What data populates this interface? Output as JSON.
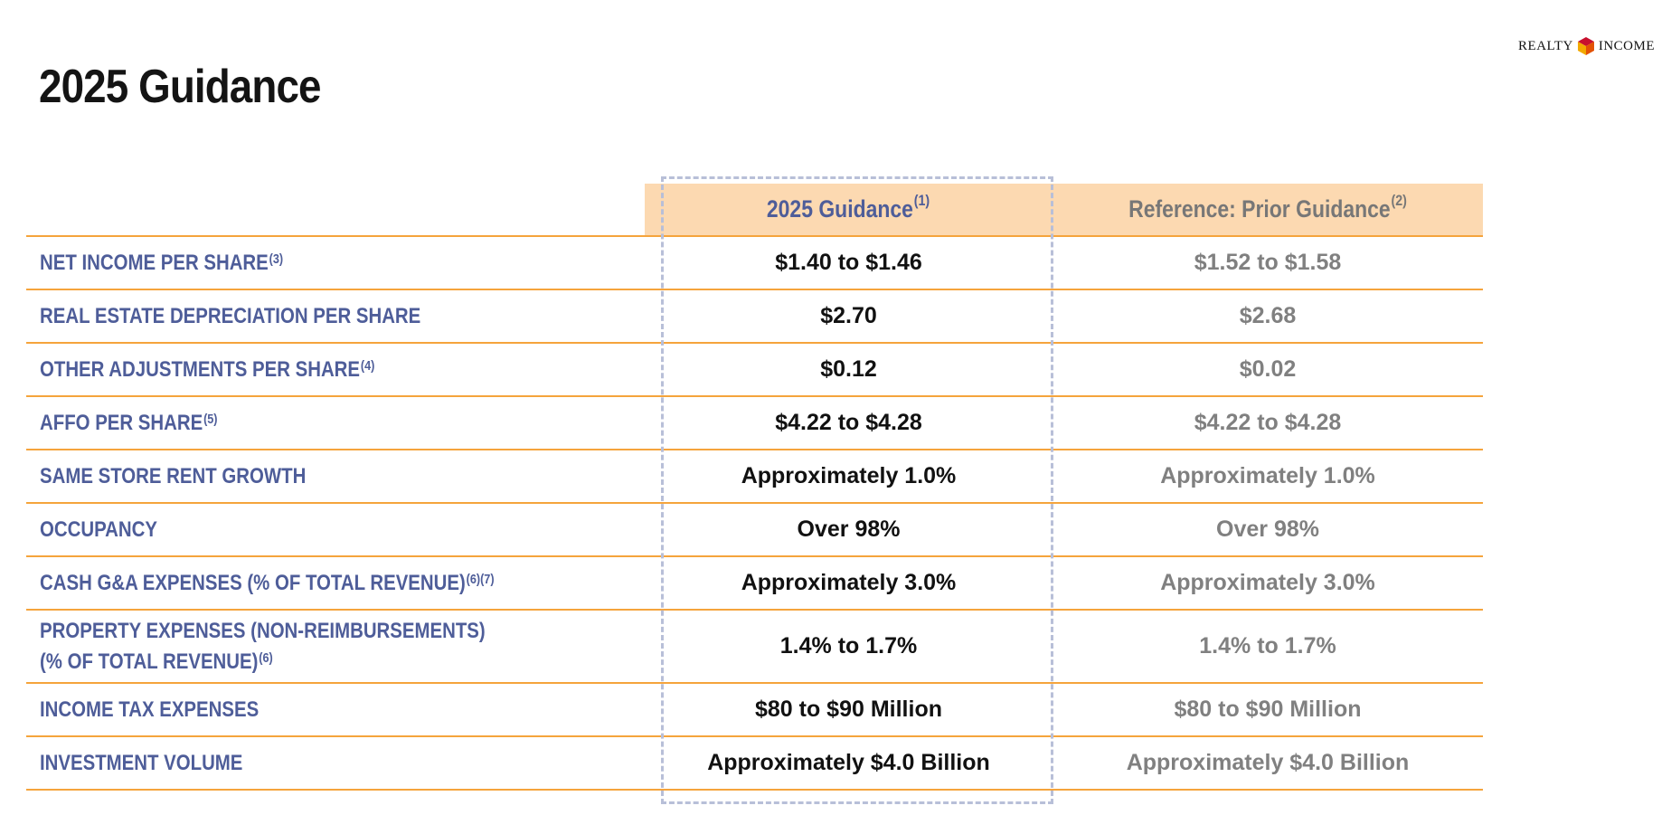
{
  "logo": {
    "left_text": "REALTY",
    "right_text": "INCOME",
    "mark": "realty-income-cube-icon"
  },
  "title": "2025 Guidance",
  "table": {
    "headers": {
      "current": "2025 Guidance",
      "current_note": "(1)",
      "prior": "Reference:  Prior Guidance",
      "prior_note": "(2)"
    },
    "rows": [
      {
        "label": "NET INCOME PER SHARE",
        "note": "(3)",
        "current": "$1.40 to $1.46",
        "prior": "$1.52 to $1.58"
      },
      {
        "label": "REAL ESTATE DEPRECIATION PER SHARE",
        "note": "",
        "current": "$2.70",
        "prior": "$2.68"
      },
      {
        "label": "OTHER ADJUSTMENTS PER SHARE",
        "note": "(4)",
        "current": "$0.12",
        "prior": "$0.02"
      },
      {
        "label": "AFFO PER SHARE",
        "note": "(5)",
        "current": "$4.22 to $4.28",
        "prior": "$4.22 to $4.28"
      },
      {
        "label": "SAME STORE RENT GROWTH",
        "note": "",
        "current": "Approximately 1.0%",
        "prior": "Approximately 1.0%"
      },
      {
        "label": "OCCUPANCY",
        "note": "",
        "current": "Over 98%",
        "prior": "Over 98%"
      },
      {
        "label": "CASH G&A EXPENSES (% OF TOTAL REVENUE)",
        "note": "(6)(7)",
        "current": "Approximately 3.0%",
        "prior": "Approximately 3.0%"
      },
      {
        "label": "PROPERTY EXPENSES (NON-REIMBURSEMENTS)",
        "label_line2": "(% OF TOTAL REVENUE)",
        "note": "(6)",
        "current": "1.4% to 1.7%",
        "prior": "1.4% to 1.7%"
      },
      {
        "label": "INCOME TAX EXPENSES",
        "note": "",
        "current": "$80 to $90 Million",
        "prior": "$80 to $90 Million"
      },
      {
        "label": "INVESTMENT VOLUME",
        "note": "",
        "current": "Approximately $4.0 Billion",
        "prior": "Approximately $4.0 Billion"
      }
    ]
  }
}
